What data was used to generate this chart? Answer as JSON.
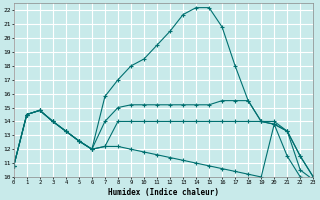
{
  "xlabel": "Humidex (Indice chaleur)",
  "bg_color": "#c8eaea",
  "grid_color": "#b0d8d8",
  "line_color": "#007070",
  "xlim": [
    0,
    23
  ],
  "ylim": [
    10,
    22.5
  ],
  "xticks": [
    0,
    1,
    2,
    3,
    4,
    5,
    6,
    7,
    8,
    9,
    10,
    11,
    12,
    13,
    14,
    15,
    16,
    17,
    18,
    19,
    20,
    21,
    22,
    23
  ],
  "yticks": [
    10,
    11,
    12,
    13,
    14,
    15,
    16,
    17,
    18,
    19,
    20,
    21,
    22
  ],
  "lines": [
    {
      "x": [
        0,
        1,
        2,
        3,
        4,
        5,
        6,
        7,
        8,
        9,
        10,
        11,
        12,
        13,
        14,
        15,
        16,
        17,
        18,
        19,
        20,
        21,
        22,
        23
      ],
      "y": [
        10.8,
        14.5,
        14.8,
        14.0,
        13.3,
        12.6,
        12.0,
        15.8,
        17.0,
        18.0,
        18.5,
        19.5,
        20.5,
        21.7,
        22.2,
        22.2,
        20.8,
        18.0,
        15.5,
        14.0,
        13.8,
        11.5,
        10.0,
        9.8
      ]
    },
    {
      "x": [
        0,
        1,
        2,
        3,
        4,
        5,
        6,
        7,
        8,
        9,
        10,
        11,
        12,
        13,
        14,
        15,
        16,
        17,
        18,
        19,
        20,
        21,
        22,
        23
      ],
      "y": [
        10.8,
        14.5,
        14.8,
        14.0,
        13.3,
        12.6,
        12.0,
        14.0,
        15.0,
        15.2,
        15.2,
        15.2,
        15.2,
        15.2,
        15.2,
        15.2,
        15.5,
        15.5,
        15.5,
        14.0,
        13.8,
        13.3,
        11.5,
        10.0
      ]
    },
    {
      "x": [
        0,
        1,
        2,
        3,
        4,
        5,
        6,
        7,
        8,
        9,
        10,
        11,
        12,
        13,
        14,
        15,
        16,
        17,
        18,
        19,
        20,
        21,
        22,
        23
      ],
      "y": [
        10.8,
        14.5,
        14.8,
        14.0,
        13.3,
        12.6,
        12.0,
        12.2,
        14.0,
        14.0,
        14.0,
        14.0,
        14.0,
        14.0,
        14.0,
        14.0,
        14.0,
        14.0,
        14.0,
        14.0,
        14.0,
        13.3,
        11.5,
        10.0
      ]
    },
    {
      "x": [
        0,
        1,
        2,
        3,
        4,
        5,
        6,
        7,
        8,
        9,
        10,
        11,
        12,
        13,
        14,
        15,
        16,
        17,
        18,
        19,
        20,
        21,
        22,
        23
      ],
      "y": [
        10.8,
        14.5,
        14.8,
        14.0,
        13.3,
        12.6,
        12.0,
        12.2,
        12.2,
        12.0,
        11.8,
        11.6,
        11.4,
        11.2,
        11.0,
        10.8,
        10.6,
        10.4,
        10.2,
        10.0,
        13.8,
        13.3,
        10.5,
        9.8
      ]
    }
  ]
}
